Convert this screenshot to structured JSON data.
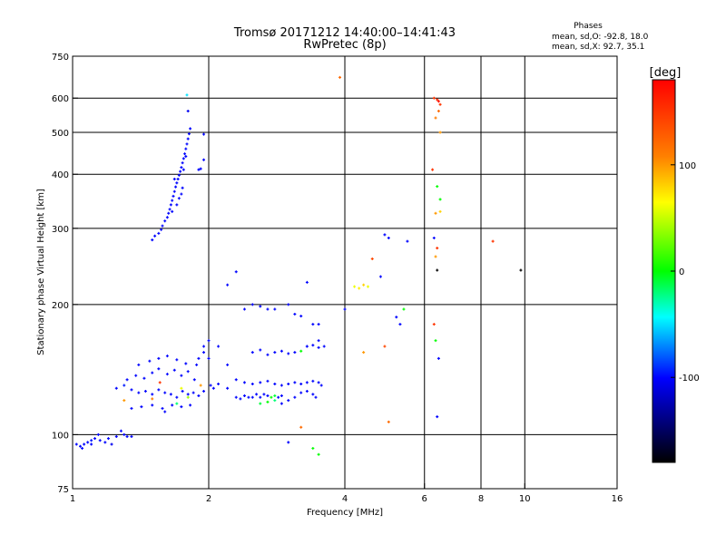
{
  "chart_data": {
    "type": "scatter",
    "title": "Tromsø 20171212 14:40:00–14:41:43",
    "subtitle": "RwPretec (8p)",
    "xlabel": "Frequency [MHz]",
    "ylabel": "Stationary phase Virtual Height [km]",
    "x_scale": "log",
    "y_scale": "log",
    "xlim": [
      1,
      16
    ],
    "ylim": [
      75,
      750
    ],
    "x_ticks": [
      1,
      2,
      4,
      6,
      8,
      10,
      16
    ],
    "y_ticks": [
      75,
      100,
      200,
      300,
      400,
      500,
      600,
      750
    ],
    "x_grid": [
      2,
      4,
      6,
      8,
      10
    ],
    "y_grid": [
      100,
      200,
      300,
      400,
      500,
      600
    ],
    "phases_header": "Phases",
    "phases_stats": [
      "mean, sd,O: -92.8, 18.0",
      "mean, sd,X:  92.7, 35.1"
    ],
    "colorbar": {
      "label": "[deg]",
      "range": [
        -180,
        180
      ],
      "ticks": [
        100,
        0,
        -100
      ],
      "colors": [
        "#ff0000",
        "#ff8000",
        "#ffff00",
        "#00ff00",
        "#00ffff",
        "#0000ff",
        "#000000"
      ]
    },
    "series": [
      {
        "points": [
          [
            1.02,
            95,
            -100
          ],
          [
            1.04,
            94,
            -100
          ],
          [
            1.06,
            95,
            -100
          ],
          [
            1.08,
            96,
            -100
          ],
          [
            1.1,
            97,
            -95
          ],
          [
            1.12,
            98,
            -100
          ],
          [
            1.15,
            97,
            -100
          ],
          [
            1.18,
            96,
            -100
          ],
          [
            1.2,
            98,
            -100
          ],
          [
            1.25,
            99,
            -100
          ],
          [
            1.3,
            100,
            -100
          ],
          [
            1.35,
            99,
            -100
          ],
          [
            1.05,
            93,
            -100
          ],
          [
            1.1,
            95,
            -100
          ],
          [
            1.14,
            100,
            -100
          ],
          [
            1.22,
            95,
            -105
          ],
          [
            1.28,
            102,
            -100
          ],
          [
            1.32,
            99,
            -100
          ],
          [
            1.25,
            128,
            -100
          ],
          [
            1.3,
            130,
            -95
          ],
          [
            1.35,
            127,
            -100
          ],
          [
            1.4,
            125,
            -100
          ],
          [
            1.45,
            126,
            -100
          ],
          [
            1.5,
            124,
            -100
          ],
          [
            1.55,
            127,
            -100
          ],
          [
            1.6,
            125,
            -100
          ],
          [
            1.65,
            124,
            -100
          ],
          [
            1.7,
            122,
            -100
          ],
          [
            1.75,
            126,
            -100
          ],
          [
            1.8,
            124,
            -100
          ],
          [
            1.85,
            125,
            -100
          ],
          [
            1.9,
            123,
            -100
          ],
          [
            1.95,
            126,
            -100
          ],
          [
            1.32,
            134,
            -100
          ],
          [
            1.38,
            137,
            -100
          ],
          [
            1.44,
            135,
            -100
          ],
          [
            1.5,
            139,
            -100
          ],
          [
            1.55,
            142,
            -100
          ],
          [
            1.62,
            138,
            -100
          ],
          [
            1.68,
            141,
            -100
          ],
          [
            1.74,
            137,
            -100
          ],
          [
            1.8,
            140,
            -100
          ],
          [
            1.86,
            134,
            -100
          ],
          [
            1.4,
            145,
            -100
          ],
          [
            1.48,
            148,
            -100
          ],
          [
            1.55,
            150,
            -100
          ],
          [
            1.62,
            152,
            -100
          ],
          [
            1.7,
            149,
            -100
          ],
          [
            1.78,
            146,
            -100
          ],
          [
            1.88,
            145,
            -100
          ],
          [
            1.9,
            150,
            -100
          ],
          [
            1.95,
            160,
            -100
          ],
          [
            1.35,
            115,
            -100
          ],
          [
            1.42,
            116,
            -100
          ],
          [
            1.5,
            117,
            -100
          ],
          [
            1.58,
            115,
            -100
          ],
          [
            1.66,
            117,
            -100
          ],
          [
            1.74,
            116,
            -100
          ],
          [
            1.82,
            117,
            -100
          ],
          [
            1.6,
            113,
            -100
          ],
          [
            1.3,
            120,
            100
          ],
          [
            1.5,
            121,
            110
          ],
          [
            1.8,
            122,
            40
          ],
          [
            1.92,
            130,
            100
          ],
          [
            1.7,
            118,
            -20
          ],
          [
            1.56,
            132,
            150
          ],
          [
            1.74,
            128,
            60
          ],
          [
            1.5,
            282,
            -100
          ],
          [
            1.52,
            288,
            -100
          ],
          [
            1.55,
            292,
            -100
          ],
          [
            1.57,
            298,
            -100
          ],
          [
            1.58,
            304,
            -100
          ],
          [
            1.6,
            312,
            -100
          ],
          [
            1.62,
            318,
            -100
          ],
          [
            1.63,
            325,
            -100
          ],
          [
            1.64,
            332,
            -100
          ],
          [
            1.65,
            340,
            -100
          ],
          [
            1.66,
            348,
            -100
          ],
          [
            1.67,
            356,
            -100
          ],
          [
            1.68,
            365,
            -100
          ],
          [
            1.69,
            374,
            -100
          ],
          [
            1.7,
            382,
            -100
          ],
          [
            1.71,
            390,
            -100
          ],
          [
            1.72,
            398,
            -100
          ],
          [
            1.73,
            406,
            -100
          ],
          [
            1.74,
            415,
            -100
          ],
          [
            1.75,
            425,
            -100
          ],
          [
            1.76,
            435,
            -100
          ],
          [
            1.77,
            446,
            -100
          ],
          [
            1.78,
            458,
            -100
          ],
          [
            1.79,
            470,
            -100
          ],
          [
            1.8,
            483,
            -100
          ],
          [
            1.81,
            496,
            -100
          ],
          [
            1.82,
            510,
            -100
          ],
          [
            1.8,
            560,
            -105
          ],
          [
            1.79,
            610,
            -50
          ],
          [
            1.66,
            328,
            -100
          ],
          [
            1.7,
            340,
            -100
          ],
          [
            1.74,
            360,
            -100
          ],
          [
            1.68,
            390,
            -100
          ],
          [
            1.76,
            410,
            -100
          ],
          [
            1.78,
            440,
            -100
          ],
          [
            1.72,
            352,
            -100
          ],
          [
            1.75,
            372,
            -100
          ],
          [
            1.9,
            410,
            -100
          ],
          [
            1.92,
            412,
            -100
          ],
          [
            1.95,
            432,
            -100
          ],
          [
            1.95,
            495,
            -100
          ],
          [
            2.02,
            130,
            -100
          ],
          [
            2.05,
            128,
            -100
          ],
          [
            2.1,
            131,
            -100
          ],
          [
            2.2,
            128,
            -100
          ],
          [
            2.3,
            122,
            -100
          ],
          [
            2.35,
            121,
            -100
          ],
          [
            2.4,
            123,
            -100
          ],
          [
            2.45,
            122,
            -100
          ],
          [
            2.5,
            122,
            -100
          ],
          [
            2.55,
            124,
            -100
          ],
          [
            2.6,
            122,
            -100
          ],
          [
            2.65,
            124,
            -100
          ],
          [
            2.7,
            123,
            -100
          ],
          [
            2.75,
            122,
            0
          ],
          [
            2.8,
            123,
            -10
          ],
          [
            2.85,
            122,
            -100
          ],
          [
            2.9,
            123,
            -100
          ],
          [
            2.3,
            134,
            -100
          ],
          [
            2.4,
            132,
            -100
          ],
          [
            2.5,
            131,
            -100
          ],
          [
            2.6,
            132,
            -100
          ],
          [
            2.7,
            133,
            -100
          ],
          [
            2.8,
            131,
            -100
          ],
          [
            2.9,
            130,
            -100
          ],
          [
            3.0,
            131,
            -100
          ],
          [
            3.1,
            132,
            -100
          ],
          [
            3.2,
            131,
            -100
          ],
          [
            3.3,
            132,
            -100
          ],
          [
            3.4,
            133,
            -100
          ],
          [
            3.5,
            132,
            -100
          ],
          [
            3.55,
            130,
            -100
          ],
          [
            2.6,
            118,
            -10
          ],
          [
            2.7,
            119,
            0
          ],
          [
            2.8,
            120,
            -20
          ],
          [
            2.9,
            118,
            -100
          ],
          [
            3.0,
            120,
            -100
          ],
          [
            3.1,
            122,
            -100
          ],
          [
            3.2,
            125,
            -100
          ],
          [
            3.3,
            126,
            -100
          ],
          [
            3.4,
            124,
            -100
          ],
          [
            3.45,
            122,
            -100
          ],
          [
            2.5,
            155,
            -100
          ],
          [
            2.6,
            157,
            -100
          ],
          [
            2.7,
            153,
            -100
          ],
          [
            2.8,
            155,
            -100
          ],
          [
            2.9,
            156,
            -100
          ],
          [
            3.0,
            154,
            -100
          ],
          [
            3.1,
            155,
            -100
          ],
          [
            3.2,
            156,
            0
          ],
          [
            3.3,
            160,
            -100
          ],
          [
            3.4,
            161,
            -100
          ],
          [
            3.5,
            159,
            -100
          ],
          [
            3.6,
            160,
            -100
          ],
          [
            2.0,
            165,
            -100
          ],
          [
            2.1,
            160,
            -100
          ],
          [
            2.2,
            145,
            -100
          ],
          [
            2.0,
            150,
            -100
          ],
          [
            1.95,
            155,
            -100
          ],
          [
            2.4,
            195,
            -100
          ],
          [
            2.5,
            200,
            -100
          ],
          [
            2.6,
            198,
            -100
          ],
          [
            2.7,
            195,
            -100
          ],
          [
            2.8,
            195,
            -100
          ],
          [
            3.0,
            200,
            -100
          ],
          [
            3.1,
            190,
            -100
          ],
          [
            3.2,
            188,
            -100
          ],
          [
            3.4,
            180,
            -100
          ],
          [
            3.5,
            180,
            -100
          ],
          [
            2.3,
            238,
            -100
          ],
          [
            2.2,
            222,
            -100
          ],
          [
            3.3,
            225,
            -100
          ],
          [
            4.0,
            195,
            -100
          ],
          [
            3.5,
            165,
            -100
          ],
          [
            3.3,
            160,
            -100
          ],
          [
            4.2,
            220,
            60
          ],
          [
            4.3,
            218,
            70
          ],
          [
            4.4,
            222,
            80
          ],
          [
            4.5,
            220,
            60
          ],
          [
            4.6,
            255,
            140
          ],
          [
            4.8,
            232,
            -100
          ],
          [
            4.9,
            290,
            -100
          ],
          [
            5.0,
            285,
            -100
          ],
          [
            5.5,
            280,
            -100
          ],
          [
            5.2,
            187,
            -100
          ],
          [
            5.3,
            180,
            -100
          ],
          [
            5.4,
            195,
            0
          ],
          [
            3.9,
            670,
            120
          ],
          [
            4.4,
            155,
            100
          ],
          [
            4.9,
            160,
            140
          ],
          [
            5.0,
            107,
            120
          ],
          [
            3.5,
            90,
            0
          ],
          [
            3.4,
            93,
            0
          ],
          [
            3.2,
            104,
            120
          ],
          [
            3.0,
            96,
            -100
          ],
          [
            6.3,
            600,
            150
          ],
          [
            6.4,
            595,
            160
          ],
          [
            6.45,
            590,
            170
          ],
          [
            6.5,
            580,
            150
          ],
          [
            6.45,
            560,
            120
          ],
          [
            6.35,
            540,
            110
          ],
          [
            6.5,
            500,
            100
          ],
          [
            6.25,
            410,
            150
          ],
          [
            6.4,
            375,
            0
          ],
          [
            6.5,
            350,
            0
          ],
          [
            6.35,
            325,
            100
          ],
          [
            6.5,
            328,
            80
          ],
          [
            6.3,
            285,
            -100
          ],
          [
            6.4,
            270,
            150
          ],
          [
            6.35,
            258,
            100
          ],
          [
            6.4,
            240,
            -180
          ],
          [
            6.3,
            180,
            150
          ],
          [
            6.35,
            165,
            0
          ],
          [
            6.45,
            150,
            -100
          ],
          [
            6.4,
            110,
            -100
          ],
          [
            8.5,
            280,
            150
          ],
          [
            9.8,
            240,
            -180
          ]
        ]
      }
    ]
  }
}
